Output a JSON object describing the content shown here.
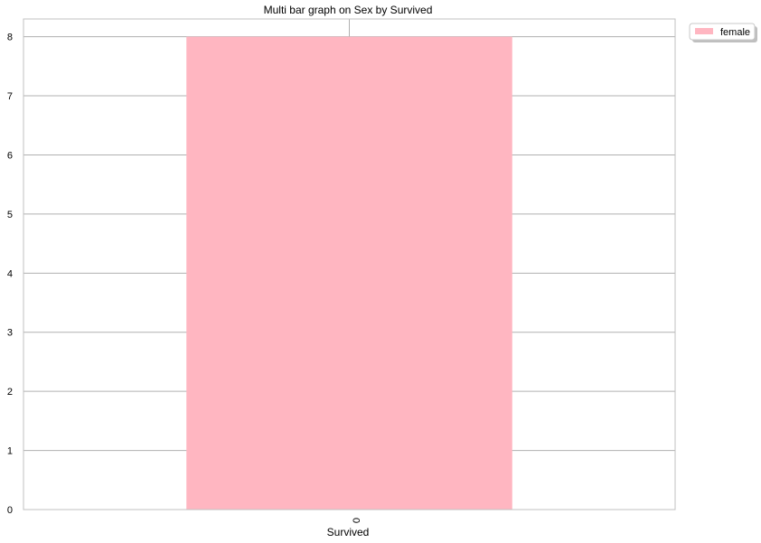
{
  "chart_data": {
    "type": "bar",
    "title": "Multi bar graph on Sex by Survived",
    "xlabel": "Survived",
    "ylabel": "",
    "categories": [
      "0"
    ],
    "series": [
      {
        "name": "female",
        "values": [
          8
        ],
        "color": "#ffb6c1"
      }
    ],
    "ylim": [
      0,
      8.3
    ],
    "yticks": [
      "0",
      "1",
      "2",
      "3",
      "4",
      "5",
      "6",
      "7",
      "8"
    ],
    "grid": true,
    "legend_position": "outside top-right",
    "colors": {
      "grid": "#b0b0b0",
      "frame": "#c0c0c0",
      "background": "#ffffff"
    }
  }
}
